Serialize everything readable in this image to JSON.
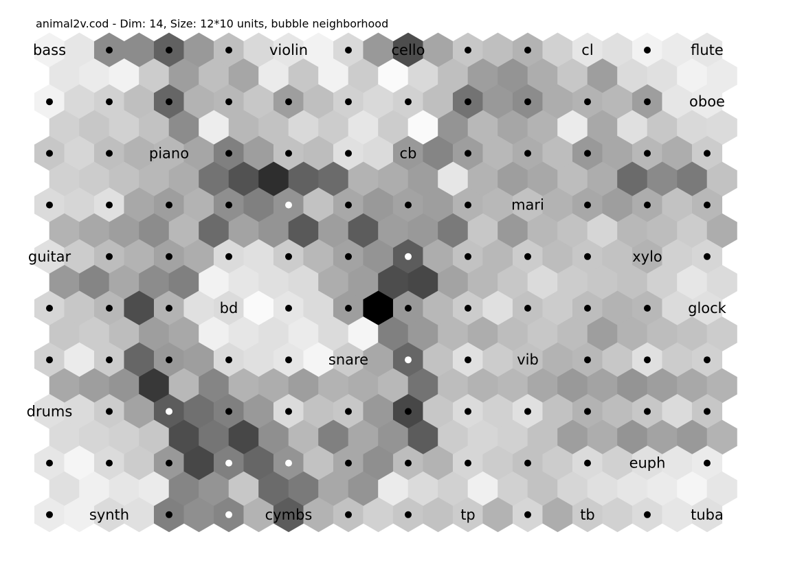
{
  "chart_data": {
    "type": "heatmap",
    "title": "animal2v.cod - Dim: 14, Size: 12*10 units, bubble neighborhood",
    "map": {
      "file": "animal2v.cod",
      "dim": 14,
      "xdim": 12,
      "ydim": 10,
      "lattice": "hexa",
      "neighborhood": "bubble"
    },
    "colorscale": {
      "low": "#000000",
      "high": "#ffffff",
      "note": "grey level = distance; light = small, dark = large"
    },
    "umatrix": [
      [
        0.95,
        0.9,
        0.55,
        0.55,
        0.38,
        0.6,
        0.75,
        0.85,
        0.9,
        0.95,
        0.85,
        0.6,
        0.3,
        0.65,
        0.78,
        0.75,
        0.7,
        0.82,
        0.9,
        0.88,
        0.95,
        0.92,
        0.9
      ],
      [
        0.9,
        0.92,
        0.95,
        0.8,
        0.62,
        0.75,
        0.65,
        0.92,
        0.78,
        0.95,
        0.8,
        0.98,
        0.85,
        0.75,
        0.62,
        0.58,
        0.68,
        0.78,
        0.62,
        0.86,
        0.88,
        0.95,
        0.92
      ],
      [
        0.95,
        0.85,
        0.82,
        0.75,
        0.4,
        0.7,
        0.72,
        0.78,
        0.62,
        0.75,
        0.82,
        0.85,
        0.82,
        0.75,
        0.45,
        0.6,
        0.55,
        0.68,
        0.7,
        0.72,
        0.62,
        0.9,
        0.92
      ],
      [
        0.82,
        0.78,
        0.82,
        0.76,
        0.55,
        0.93,
        0.72,
        0.76,
        0.85,
        0.8,
        0.9,
        0.8,
        0.98,
        0.58,
        0.72,
        0.65,
        0.7,
        0.92,
        0.66,
        0.88,
        0.78,
        0.85,
        0.86
      ],
      [
        0.78,
        0.84,
        0.75,
        0.7,
        0.72,
        0.65,
        0.5,
        0.62,
        0.76,
        0.74,
        0.88,
        0.86,
        0.6,
        0.52,
        0.62,
        0.72,
        0.68,
        0.74,
        0.6,
        0.66,
        0.72,
        0.68,
        0.8
      ],
      [
        0.82,
        0.8,
        0.76,
        0.72,
        0.68,
        0.45,
        0.32,
        0.18,
        0.38,
        0.42,
        0.7,
        0.68,
        0.62,
        0.9,
        0.7,
        0.62,
        0.66,
        0.74,
        0.68,
        0.42,
        0.54,
        0.48,
        0.76
      ],
      [
        0.86,
        0.84,
        0.88,
        0.66,
        0.62,
        0.7,
        0.56,
        0.5,
        0.58,
        0.76,
        0.66,
        0.6,
        0.64,
        0.62,
        0.7,
        0.72,
        0.76,
        0.7,
        0.66,
        0.62,
        0.68,
        0.76,
        0.72
      ],
      [
        0.7,
        0.66,
        0.62,
        0.55,
        0.72,
        0.42,
        0.64,
        0.58,
        0.35,
        0.62,
        0.36,
        0.62,
        0.6,
        0.48,
        0.78,
        0.6,
        0.72,
        0.76,
        0.84,
        0.72,
        0.74,
        0.8,
        0.68
      ],
      [
        0.88,
        0.8,
        0.74,
        0.7,
        0.64,
        0.68,
        0.86,
        0.88,
        0.8,
        0.72,
        0.64,
        0.58,
        0.36,
        0.68,
        0.76,
        0.72,
        0.8,
        0.74,
        0.78,
        0.76,
        0.7,
        0.82,
        0.84
      ],
      [
        0.6,
        0.52,
        0.66,
        0.55,
        0.5,
        0.95,
        0.9,
        0.88,
        0.86,
        0.68,
        0.62,
        0.3,
        0.28,
        0.64,
        0.72,
        0.78,
        0.86,
        0.8,
        0.78,
        0.76,
        0.82,
        0.9,
        0.86
      ],
      [
        0.84,
        0.78,
        0.72,
        0.3,
        0.7,
        0.88,
        0.86,
        0.98,
        0.9,
        0.86,
        0.62,
        0.0,
        0.6,
        0.72,
        0.8,
        0.88,
        0.76,
        0.8,
        0.74,
        0.7,
        0.72,
        0.86,
        0.88
      ],
      [
        0.78,
        0.8,
        0.74,
        0.62,
        0.66,
        0.94,
        0.9,
        0.88,
        0.92,
        0.86,
        0.96,
        0.5,
        0.6,
        0.72,
        0.68,
        0.74,
        0.78,
        0.74,
        0.62,
        0.7,
        0.74,
        0.76,
        0.8
      ],
      [
        0.82,
        0.92,
        0.8,
        0.4,
        0.6,
        0.62,
        0.86,
        0.88,
        0.9,
        0.96,
        0.8,
        0.66,
        0.4,
        0.76,
        0.88,
        0.8,
        0.76,
        0.7,
        0.72,
        0.78,
        0.88,
        0.8,
        0.82
      ],
      [
        0.66,
        0.62,
        0.58,
        0.22,
        0.72,
        0.52,
        0.7,
        0.68,
        0.62,
        0.7,
        0.68,
        0.72,
        0.45,
        0.74,
        0.7,
        0.72,
        0.66,
        0.6,
        0.64,
        0.58,
        0.62,
        0.66,
        0.7
      ],
      [
        0.88,
        0.86,
        0.8,
        0.64,
        0.36,
        0.44,
        0.5,
        0.6,
        0.86,
        0.76,
        0.78,
        0.6,
        0.28,
        0.78,
        0.86,
        0.82,
        0.88,
        0.76,
        0.7,
        0.74,
        0.78,
        0.86,
        0.78
      ],
      [
        0.86,
        0.84,
        0.82,
        0.78,
        0.3,
        0.46,
        0.28,
        0.56,
        0.72,
        0.5,
        0.66,
        0.58,
        0.36,
        0.8,
        0.84,
        0.82,
        0.76,
        0.62,
        0.68,
        0.58,
        0.64,
        0.6,
        0.7
      ],
      [
        0.9,
        0.96,
        0.86,
        0.8,
        0.6,
        0.28,
        0.5,
        0.4,
        0.58,
        0.76,
        0.66,
        0.56,
        0.74,
        0.7,
        0.84,
        0.8,
        0.76,
        0.8,
        0.86,
        0.82,
        0.88,
        0.9,
        0.92
      ],
      [
        0.88,
        0.94,
        0.9,
        0.92,
        0.52,
        0.58,
        0.78,
        0.42,
        0.48,
        0.66,
        0.58,
        0.92,
        0.86,
        0.82,
        0.94,
        0.82,
        0.76,
        0.84,
        0.88,
        0.9,
        0.92,
        0.96,
        0.9
      ],
      [
        0.92,
        0.94,
        0.86,
        0.88,
        0.5,
        0.56,
        0.52,
        0.7,
        0.36,
        0.7,
        0.76,
        0.82,
        0.78,
        0.76,
        0.8,
        0.7,
        0.84,
        0.68,
        0.8,
        0.82,
        0.86,
        0.9,
        0.88
      ]
    ],
    "nodes": [
      {
        "row": 0,
        "col": 0,
        "label": "bass",
        "dot": "none"
      },
      {
        "row": 0,
        "col": 1,
        "label": "",
        "dot": "black"
      },
      {
        "row": 0,
        "col": 2,
        "label": "",
        "dot": "black"
      },
      {
        "row": 0,
        "col": 3,
        "label": "",
        "dot": "black"
      },
      {
        "row": 0,
        "col": 4,
        "label": "violin",
        "dot": "none"
      },
      {
        "row": 0,
        "col": 5,
        "label": "",
        "dot": "black"
      },
      {
        "row": 0,
        "col": 6,
        "label": "cello",
        "dot": "none"
      },
      {
        "row": 0,
        "col": 7,
        "label": "",
        "dot": "black"
      },
      {
        "row": 0,
        "col": 8,
        "label": "",
        "dot": "black"
      },
      {
        "row": 0,
        "col": 9,
        "label": "cl",
        "dot": "none"
      },
      {
        "row": 0,
        "col": 10,
        "label": "",
        "dot": "black"
      },
      {
        "row": 0,
        "col": 11,
        "label": "flute",
        "dot": "none"
      },
      {
        "row": 1,
        "col": 0,
        "label": "",
        "dot": "black"
      },
      {
        "row": 1,
        "col": 1,
        "label": "",
        "dot": "black"
      },
      {
        "row": 1,
        "col": 2,
        "label": "",
        "dot": "black"
      },
      {
        "row": 1,
        "col": 3,
        "label": "",
        "dot": "black"
      },
      {
        "row": 1,
        "col": 4,
        "label": "",
        "dot": "black"
      },
      {
        "row": 1,
        "col": 5,
        "label": "",
        "dot": "black"
      },
      {
        "row": 1,
        "col": 6,
        "label": "",
        "dot": "black"
      },
      {
        "row": 1,
        "col": 7,
        "label": "",
        "dot": "black"
      },
      {
        "row": 1,
        "col": 8,
        "label": "",
        "dot": "black"
      },
      {
        "row": 1,
        "col": 9,
        "label": "",
        "dot": "black"
      },
      {
        "row": 1,
        "col": 10,
        "label": "",
        "dot": "black"
      },
      {
        "row": 1,
        "col": 11,
        "label": "oboe",
        "dot": "none"
      },
      {
        "row": 2,
        "col": 0,
        "label": "",
        "dot": "black"
      },
      {
        "row": 2,
        "col": 1,
        "label": "",
        "dot": "black"
      },
      {
        "row": 2,
        "col": 2,
        "label": "piano",
        "dot": "none"
      },
      {
        "row": 2,
        "col": 3,
        "label": "",
        "dot": "black"
      },
      {
        "row": 2,
        "col": 4,
        "label": "",
        "dot": "black"
      },
      {
        "row": 2,
        "col": 5,
        "label": "",
        "dot": "black"
      },
      {
        "row": 2,
        "col": 6,
        "label": "cb",
        "dot": "none"
      },
      {
        "row": 2,
        "col": 7,
        "label": "",
        "dot": "black"
      },
      {
        "row": 2,
        "col": 8,
        "label": "",
        "dot": "black"
      },
      {
        "row": 2,
        "col": 9,
        "label": "",
        "dot": "black"
      },
      {
        "row": 2,
        "col": 10,
        "label": "",
        "dot": "black"
      },
      {
        "row": 2,
        "col": 11,
        "label": "",
        "dot": "black"
      },
      {
        "row": 3,
        "col": 0,
        "label": "",
        "dot": "black"
      },
      {
        "row": 3,
        "col": 1,
        "label": "",
        "dot": "black"
      },
      {
        "row": 3,
        "col": 2,
        "label": "",
        "dot": "black"
      },
      {
        "row": 3,
        "col": 3,
        "label": "",
        "dot": "black"
      },
      {
        "row": 3,
        "col": 4,
        "label": "",
        "dot": "white"
      },
      {
        "row": 3,
        "col": 5,
        "label": "",
        "dot": "black"
      },
      {
        "row": 3,
        "col": 6,
        "label": "",
        "dot": "black"
      },
      {
        "row": 3,
        "col": 7,
        "label": "",
        "dot": "black"
      },
      {
        "row": 3,
        "col": 8,
        "label": "mari",
        "dot": "none"
      },
      {
        "row": 3,
        "col": 9,
        "label": "",
        "dot": "black"
      },
      {
        "row": 3,
        "col": 10,
        "label": "",
        "dot": "black"
      },
      {
        "row": 3,
        "col": 11,
        "label": "",
        "dot": "black"
      },
      {
        "row": 4,
        "col": 0,
        "label": "guitar",
        "dot": "none"
      },
      {
        "row": 4,
        "col": 1,
        "label": "",
        "dot": "black"
      },
      {
        "row": 4,
        "col": 2,
        "label": "",
        "dot": "black"
      },
      {
        "row": 4,
        "col": 3,
        "label": "",
        "dot": "black"
      },
      {
        "row": 4,
        "col": 4,
        "label": "",
        "dot": "black"
      },
      {
        "row": 4,
        "col": 5,
        "label": "",
        "dot": "black"
      },
      {
        "row": 4,
        "col": 6,
        "label": "",
        "dot": "white"
      },
      {
        "row": 4,
        "col": 7,
        "label": "",
        "dot": "black"
      },
      {
        "row": 4,
        "col": 8,
        "label": "",
        "dot": "black"
      },
      {
        "row": 4,
        "col": 9,
        "label": "",
        "dot": "black"
      },
      {
        "row": 4,
        "col": 10,
        "label": "xylo",
        "dot": "none"
      },
      {
        "row": 4,
        "col": 11,
        "label": "",
        "dot": "black"
      },
      {
        "row": 5,
        "col": 0,
        "label": "",
        "dot": "black"
      },
      {
        "row": 5,
        "col": 1,
        "label": "",
        "dot": "black"
      },
      {
        "row": 5,
        "col": 2,
        "label": "",
        "dot": "black"
      },
      {
        "row": 5,
        "col": 3,
        "label": "bd",
        "dot": "none"
      },
      {
        "row": 5,
        "col": 4,
        "label": "",
        "dot": "black"
      },
      {
        "row": 5,
        "col": 5,
        "label": "",
        "dot": "black"
      },
      {
        "row": 5,
        "col": 6,
        "label": "",
        "dot": "black"
      },
      {
        "row": 5,
        "col": 7,
        "label": "",
        "dot": "black"
      },
      {
        "row": 5,
        "col": 8,
        "label": "",
        "dot": "black"
      },
      {
        "row": 5,
        "col": 9,
        "label": "",
        "dot": "black"
      },
      {
        "row": 5,
        "col": 10,
        "label": "",
        "dot": "black"
      },
      {
        "row": 5,
        "col": 11,
        "label": "glock",
        "dot": "none"
      },
      {
        "row": 6,
        "col": 0,
        "label": "",
        "dot": "black"
      },
      {
        "row": 6,
        "col": 1,
        "label": "",
        "dot": "black"
      },
      {
        "row": 6,
        "col": 2,
        "label": "",
        "dot": "black"
      },
      {
        "row": 6,
        "col": 3,
        "label": "",
        "dot": "black"
      },
      {
        "row": 6,
        "col": 4,
        "label": "",
        "dot": "black"
      },
      {
        "row": 6,
        "col": 5,
        "label": "snare",
        "dot": "none"
      },
      {
        "row": 6,
        "col": 6,
        "label": "",
        "dot": "white"
      },
      {
        "row": 6,
        "col": 7,
        "label": "",
        "dot": "black"
      },
      {
        "row": 6,
        "col": 8,
        "label": "vib",
        "dot": "none"
      },
      {
        "row": 6,
        "col": 9,
        "label": "",
        "dot": "black"
      },
      {
        "row": 6,
        "col": 10,
        "label": "",
        "dot": "black"
      },
      {
        "row": 6,
        "col": 11,
        "label": "",
        "dot": "black"
      },
      {
        "row": 7,
        "col": 0,
        "label": "drums",
        "dot": "none"
      },
      {
        "row": 7,
        "col": 1,
        "label": "",
        "dot": "black"
      },
      {
        "row": 7,
        "col": 2,
        "label": "",
        "dot": "white"
      },
      {
        "row": 7,
        "col": 3,
        "label": "",
        "dot": "black"
      },
      {
        "row": 7,
        "col": 4,
        "label": "",
        "dot": "black"
      },
      {
        "row": 7,
        "col": 5,
        "label": "",
        "dot": "black"
      },
      {
        "row": 7,
        "col": 6,
        "label": "",
        "dot": "black"
      },
      {
        "row": 7,
        "col": 7,
        "label": "",
        "dot": "black"
      },
      {
        "row": 7,
        "col": 8,
        "label": "",
        "dot": "black"
      },
      {
        "row": 7,
        "col": 9,
        "label": "",
        "dot": "black"
      },
      {
        "row": 7,
        "col": 10,
        "label": "",
        "dot": "black"
      },
      {
        "row": 7,
        "col": 11,
        "label": "",
        "dot": "black"
      },
      {
        "row": 8,
        "col": 0,
        "label": "",
        "dot": "black"
      },
      {
        "row": 8,
        "col": 1,
        "label": "",
        "dot": "black"
      },
      {
        "row": 8,
        "col": 2,
        "label": "",
        "dot": "black"
      },
      {
        "row": 8,
        "col": 3,
        "label": "",
        "dot": "white"
      },
      {
        "row": 8,
        "col": 4,
        "label": "",
        "dot": "white"
      },
      {
        "row": 8,
        "col": 5,
        "label": "",
        "dot": "black"
      },
      {
        "row": 8,
        "col": 6,
        "label": "",
        "dot": "black"
      },
      {
        "row": 8,
        "col": 7,
        "label": "",
        "dot": "black"
      },
      {
        "row": 8,
        "col": 8,
        "label": "",
        "dot": "black"
      },
      {
        "row": 8,
        "col": 9,
        "label": "",
        "dot": "black"
      },
      {
        "row": 8,
        "col": 10,
        "label": "euph",
        "dot": "none"
      },
      {
        "row": 8,
        "col": 11,
        "label": "",
        "dot": "black"
      },
      {
        "row": 9,
        "col": 0,
        "label": "",
        "dot": "black"
      },
      {
        "row": 9,
        "col": 1,
        "label": "synth",
        "dot": "none"
      },
      {
        "row": 9,
        "col": 2,
        "label": "",
        "dot": "black"
      },
      {
        "row": 9,
        "col": 3,
        "label": "",
        "dot": "white"
      },
      {
        "row": 9,
        "col": 4,
        "label": "cymbs",
        "dot": "none"
      },
      {
        "row": 9,
        "col": 5,
        "label": "",
        "dot": "black"
      },
      {
        "row": 9,
        "col": 6,
        "label": "",
        "dot": "black"
      },
      {
        "row": 9,
        "col": 7,
        "label": "tp",
        "dot": "none"
      },
      {
        "row": 9,
        "col": 8,
        "label": "",
        "dot": "black"
      },
      {
        "row": 9,
        "col": 9,
        "label": "tb",
        "dot": "none"
      },
      {
        "row": 9,
        "col": 10,
        "label": "",
        "dot": "black"
      },
      {
        "row": 9,
        "col": 11,
        "label": "tuba",
        "dot": "none"
      }
    ]
  }
}
